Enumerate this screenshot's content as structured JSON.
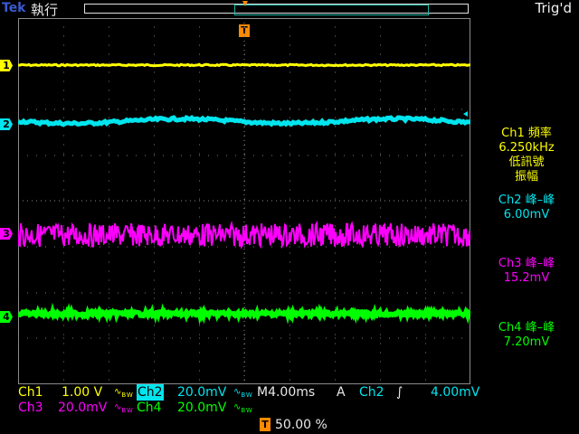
{
  "header": {
    "brand": "Tek",
    "run_state": "執行",
    "trigger_state": "Trig'd"
  },
  "colors": {
    "ch1": "#ffff00",
    "ch2": "#00e5ee",
    "ch3": "#ff00ff",
    "ch4": "#00ff00",
    "trigger": "#ff8a00"
  },
  "channel_markers": {
    "ch1": "1",
    "ch2": "2",
    "ch3": "3",
    "ch4": "4"
  },
  "trigger_marker": "T",
  "measurements": {
    "ch1_title": "Ch1 頻率",
    "ch1_value": "6.250kHz",
    "ch1_note1": "低訊號",
    "ch1_note2": "振幅",
    "ch2_title": "Ch2 峰–峰",
    "ch2_value": "6.00mV",
    "ch3_title": "Ch3 峰–峰",
    "ch3_value": "15.2mV",
    "ch4_title": "Ch4 峰–峰",
    "ch4_value": "7.20mV"
  },
  "footer": {
    "ch1_label": "Ch1",
    "ch1_scale": "1.00 V",
    "ch2_label": "Ch2",
    "ch2_scale": "20.0mV",
    "timebase": "M4.00ms",
    "trigger_mode": "A",
    "trigger_source": "Ch2",
    "trigger_slope": "∫",
    "trigger_level": "4.00mV",
    "ch3_label": "Ch3",
    "ch3_scale": "20.0mV",
    "ch4_label": "Ch4",
    "ch4_scale": "20.0mV",
    "position_marker": "T",
    "position_percent": "50.00 %",
    "bw_icon_glyph": "∿",
    "bw_icon_sub": "B W"
  }
}
